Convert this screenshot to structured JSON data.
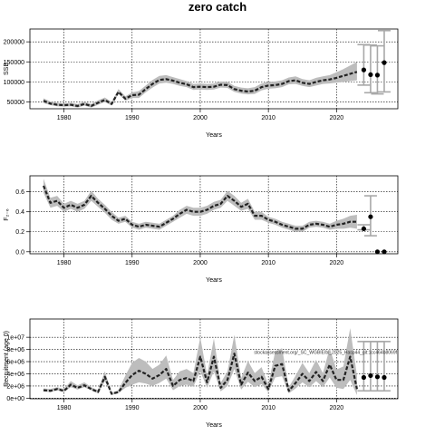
{
  "title": "zero catch",
  "colors": {
    "band": "#bdbdbd",
    "line": "#222222",
    "grid": "#000000",
    "error_bar": "#a8a8a8"
  },
  "chart_data": [
    {
      "type": "line",
      "ylabel": "SSB",
      "xlabel": "Years",
      "xlim": [
        1975,
        2029
      ],
      "ylim": [
        33000,
        232000
      ],
      "xticks": [
        1980,
        1990,
        2000,
        2010,
        2020
      ],
      "xtick_labels": [
        "1980",
        "1990",
        "2000",
        "2010",
        "2020"
      ],
      "yticks": [
        50000,
        100000,
        150000,
        200000
      ],
      "ytick_labels": [
        "50000",
        "100000",
        "150000",
        "200000"
      ],
      "grid": true,
      "x": [
        1977,
        1978,
        1979,
        1980,
        1981,
        1982,
        1983,
        1984,
        1985,
        1986,
        1987,
        1988,
        1989,
        1990,
        1991,
        1992,
        1993,
        1994,
        1995,
        1996,
        1997,
        1998,
        1999,
        2000,
        2001,
        2002,
        2003,
        2004,
        2005,
        2006,
        2007,
        2008,
        2009,
        2010,
        2011,
        2012,
        2013,
        2014,
        2015,
        2016,
        2017,
        2018,
        2019,
        2020,
        2021,
        2022,
        2023
      ],
      "values": [
        53000,
        46000,
        43000,
        42000,
        43000,
        40000,
        45000,
        40000,
        48000,
        55000,
        45000,
        75000,
        58000,
        67000,
        68000,
        82000,
        95000,
        105000,
        107000,
        103000,
        98000,
        94000,
        87000,
        88000,
        87000,
        88000,
        93000,
        92000,
        82000,
        78000,
        76000,
        78000,
        87000,
        91000,
        92000,
        95000,
        102000,
        104000,
        98000,
        95000,
        100000,
        104000,
        106000,
        110000,
        115000,
        120000,
        125000
      ],
      "lower": [
        47000,
        42000,
        39000,
        38000,
        39000,
        36000,
        41000,
        36000,
        43000,
        50000,
        41000,
        70000,
        53000,
        60000,
        60000,
        74000,
        86000,
        96000,
        98000,
        95000,
        90000,
        87000,
        80000,
        81000,
        80000,
        81000,
        86000,
        85000,
        75000,
        71000,
        69000,
        70000,
        79000,
        83000,
        84000,
        87000,
        94000,
        95000,
        90000,
        87000,
        91000,
        95000,
        96000,
        98000,
        100000,
        102000,
        104000
      ],
      "upper": [
        59000,
        51000,
        48000,
        46000,
        48000,
        45000,
        50000,
        45000,
        54000,
        61000,
        50000,
        82000,
        64000,
        74000,
        77000,
        91000,
        105000,
        115000,
        117000,
        112000,
        107000,
        102000,
        95000,
        96000,
        95000,
        96000,
        101000,
        100000,
        90000,
        86000,
        84000,
        87000,
        96000,
        100000,
        101000,
        104000,
        111000,
        114000,
        107000,
        104000,
        110000,
        114000,
        117000,
        124000,
        132000,
        141000,
        150000
      ],
      "projection": {
        "x": [
          2024,
          2025,
          2026,
          2027
        ],
        "values": [
          130000,
          118000,
          117000,
          148000
        ],
        "lower": [
          92000,
          73000,
          70000,
          75000
        ],
        "upper": [
          193000,
          192000,
          190000,
          228000
        ]
      }
    },
    {
      "type": "line",
      "ylabel": "F₂₋₆",
      "xlabel": "Years",
      "xlim": [
        1975,
        2029
      ],
      "ylim": [
        -0.02,
        0.76
      ],
      "xticks": [
        1980,
        1990,
        2000,
        2010,
        2020
      ],
      "xtick_labels": [
        "1980",
        "1990",
        "2000",
        "2010",
        "2020"
      ],
      "yticks": [
        0.0,
        0.2,
        0.4,
        0.6
      ],
      "ytick_labels": [
        "0.0",
        "0.2",
        "0.4",
        "0.6"
      ],
      "grid": true,
      "x": [
        1977,
        1978,
        1979,
        1980,
        1981,
        1982,
        1983,
        1984,
        1985,
        1986,
        1987,
        1988,
        1989,
        1990,
        1991,
        1992,
        1993,
        1994,
        1995,
        1996,
        1997,
        1998,
        1999,
        2000,
        2001,
        2002,
        2003,
        2004,
        2005,
        2006,
        2007,
        2008,
        2009,
        2010,
        2011,
        2012,
        2013,
        2014,
        2015,
        2016,
        2017,
        2018,
        2019,
        2020,
        2021,
        2022,
        2023
      ],
      "values": [
        0.66,
        0.49,
        0.51,
        0.44,
        0.47,
        0.44,
        0.47,
        0.56,
        0.49,
        0.43,
        0.36,
        0.31,
        0.33,
        0.27,
        0.25,
        0.27,
        0.26,
        0.25,
        0.29,
        0.33,
        0.38,
        0.42,
        0.4,
        0.4,
        0.42,
        0.46,
        0.48,
        0.56,
        0.51,
        0.45,
        0.48,
        0.36,
        0.36,
        0.32,
        0.3,
        0.27,
        0.25,
        0.23,
        0.23,
        0.27,
        0.28,
        0.27,
        0.25,
        0.27,
        0.28,
        0.3,
        0.3
      ],
      "lower": [
        0.59,
        0.44,
        0.46,
        0.4,
        0.43,
        0.4,
        0.43,
        0.51,
        0.45,
        0.39,
        0.32,
        0.28,
        0.3,
        0.24,
        0.22,
        0.24,
        0.23,
        0.22,
        0.26,
        0.3,
        0.34,
        0.38,
        0.36,
        0.36,
        0.38,
        0.42,
        0.44,
        0.51,
        0.46,
        0.41,
        0.43,
        0.32,
        0.32,
        0.29,
        0.27,
        0.24,
        0.22,
        0.2,
        0.2,
        0.24,
        0.25,
        0.24,
        0.22,
        0.23,
        0.23,
        0.24,
        0.23
      ],
      "upper": [
        0.73,
        0.54,
        0.56,
        0.48,
        0.51,
        0.48,
        0.51,
        0.61,
        0.53,
        0.47,
        0.4,
        0.34,
        0.36,
        0.3,
        0.28,
        0.3,
        0.29,
        0.28,
        0.32,
        0.36,
        0.42,
        0.46,
        0.44,
        0.44,
        0.46,
        0.5,
        0.52,
        0.61,
        0.56,
        0.49,
        0.53,
        0.4,
        0.4,
        0.35,
        0.33,
        0.3,
        0.28,
        0.26,
        0.26,
        0.3,
        0.31,
        0.3,
        0.28,
        0.31,
        0.33,
        0.36,
        0.37
      ],
      "projection": {
        "x": [
          2024,
          2025,
          2026,
          2027
        ],
        "values": [
          0.23,
          0.35,
          0.0,
          0.0
        ],
        "lower": [
          0.22,
          0.16,
          0.0,
          0.0
        ],
        "upper": [
          0.27,
          0.56,
          0.0,
          0.0
        ]
      }
    },
    {
      "type": "line",
      "ylabel": "Recruitment (age 0)",
      "xlabel": "Years",
      "xlim": [
        1975,
        2029
      ],
      "ylim": [
        -100000,
        13000000
      ],
      "xticks": [
        1980,
        1990,
        2000,
        2010,
        2020
      ],
      "xtick_labels": [
        "1980",
        "1990",
        "2000",
        "2010",
        "2020"
      ],
      "yticks": [
        0,
        2000000,
        4000000,
        6000000,
        8000000,
        10000000
      ],
      "ytick_labels": [
        "0e+00",
        "2e+06",
        "4e+06",
        "6e+06",
        "8e+06",
        "1e+07"
      ],
      "grid": true,
      "annotation": "stockassessment.org/_SC_WGBIE/bl_2025_Hasp44_git:1cc464b8069f",
      "x": [
        1977,
        1978,
        1979,
        1980,
        1981,
        1982,
        1983,
        1984,
        1985,
        1986,
        1987,
        1988,
        1989,
        1990,
        1991,
        1992,
        1993,
        1994,
        1995,
        1996,
        1997,
        1998,
        1999,
        2000,
        2001,
        2002,
        2003,
        2004,
        2005,
        2006,
        2007,
        2008,
        2009,
        2010,
        2011,
        2012,
        2013,
        2014,
        2015,
        2016,
        2017,
        2018,
        2019,
        2020,
        2021,
        2022,
        2023
      ],
      "values": [
        1300000,
        1200000,
        1500000,
        1200000,
        2200000,
        1700000,
        2100000,
        1500000,
        1000000,
        3500000,
        700000,
        1000000,
        2500000,
        3800000,
        4500000,
        4000000,
        3200000,
        3800000,
        4800000,
        2000000,
        3000000,
        3300000,
        2800000,
        6800000,
        2600000,
        6800000,
        1700000,
        3000000,
        7300000,
        2200000,
        4200000,
        2800000,
        3500000,
        1500000,
        5300000,
        5600000,
        1200000,
        2500000,
        4000000,
        2800000,
        4300000,
        2800000,
        5500000,
        3000000,
        3000000,
        6800000,
        1500000
      ],
      "lower": [
        1100000,
        1000000,
        1300000,
        1000000,
        1800000,
        1400000,
        1800000,
        1300000,
        800000,
        2800000,
        550000,
        800000,
        1700000,
        2200000,
        2600000,
        2400000,
        2000000,
        2500000,
        3200000,
        1300000,
        2000000,
        2200000,
        1900000,
        4400000,
        1700000,
        4400000,
        1100000,
        2000000,
        4800000,
        1400000,
        2700000,
        1800000,
        2300000,
        1000000,
        3400000,
        3600000,
        800000,
        1600000,
        2600000,
        1800000,
        2800000,
        1800000,
        3400000,
        1700000,
        1500000,
        3000000,
        500000
      ],
      "upper": [
        1600000,
        1500000,
        1800000,
        1500000,
        2800000,
        2100000,
        2600000,
        1800000,
        1300000,
        4400000,
        900000,
        1300000,
        3700000,
        5800000,
        6600000,
        6000000,
        4800000,
        5500000,
        7000000,
        3000000,
        4400000,
        4800000,
        4100000,
        10000000,
        3800000,
        9800000,
        2500000,
        4400000,
        10400000,
        3300000,
        6100000,
        4100000,
        5100000,
        2200000,
        7700000,
        8200000,
        1800000,
        3700000,
        5800000,
        4100000,
        6300000,
        4100000,
        8200000,
        4700000,
        5200000,
        11500000,
        3700000
      ],
      "projection": {
        "x": [
          2024,
          2025,
          2026,
          2027
        ],
        "values": [
          3400000,
          3700000,
          3500000,
          3400000
        ],
        "lower": [
          1200000,
          1200000,
          1200000,
          1200000
        ],
        "upper": [
          9300000,
          9300000,
          9300000,
          9300000
        ]
      }
    }
  ]
}
